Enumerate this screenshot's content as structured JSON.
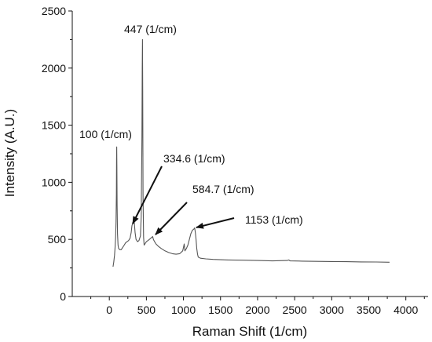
{
  "chart_data": {
    "type": "line",
    "title": "",
    "xlabel": "Raman Shift (1/cm)",
    "ylabel": "Intensity (A.U.)",
    "xlim": [
      -500,
      4300
    ],
    "ylim": [
      0,
      2500
    ],
    "xticks": [
      0,
      500,
      1000,
      1500,
      2000,
      2500,
      3000,
      3500,
      4000
    ],
    "yticks": [
      0,
      500,
      1000,
      1500,
      2000,
      2500
    ],
    "grid": false,
    "legend": "none",
    "line_color": "#555555",
    "series": [
      {
        "x": [
          50,
          60,
          70,
          78,
          85,
          90,
          95,
          98,
          100,
          102,
          105,
          110,
          118,
          125,
          140,
          160,
          180,
          200,
          220,
          240,
          260,
          280,
          295,
          305,
          315,
          322,
          328,
          334.6,
          340,
          348,
          360,
          380,
          400,
          420,
          430,
          440,
          444,
          447,
          450,
          455,
          462,
          470,
          480,
          490,
          500,
          520,
          540,
          560,
          575,
          584.7,
          595,
          610,
          630,
          660,
          700,
          750,
          800,
          850,
          900,
          950,
          990,
          1000,
          1010,
          1020,
          1040,
          1060,
          1080,
          1100,
          1120,
          1140,
          1150,
          1153,
          1160,
          1170,
          1180,
          1190,
          1200,
          1230,
          1300,
          1400,
          1600,
          1800,
          2000,
          2200,
          2400,
          2420,
          2440,
          2600,
          2800,
          3000,
          3200,
          3400,
          3600,
          3780
        ],
        "y": [
          260,
          300,
          360,
          430,
          520,
          650,
          900,
          1200,
          1310,
          1150,
          800,
          550,
          450,
          420,
          410,
          410,
          430,
          450,
          470,
          480,
          490,
          510,
          560,
          620,
          640,
          650,
          640,
          660,
          620,
          560,
          500,
          480,
          490,
          530,
          700,
          1400,
          2000,
          2250,
          1800,
          900,
          520,
          450,
          460,
          470,
          480,
          490,
          500,
          510,
          520,
          525,
          500,
          480,
          460,
          440,
          420,
          400,
          385,
          375,
          370,
          375,
          400,
          430,
          460,
          400,
          420,
          450,
          500,
          550,
          580,
          590,
          600,
          595,
          560,
          500,
          420,
          370,
          345,
          335,
          330,
          325,
          320,
          318,
          315,
          312,
          315,
          320,
          312,
          310,
          308,
          306,
          305,
          303,
          302,
          300
        ]
      }
    ],
    "annotations": [
      {
        "label": "447 (1/cm)",
        "x": 447,
        "y": 2250
      },
      {
        "label": "100 (1/cm)",
        "x": 100,
        "y": 1310
      },
      {
        "label": "334.6 (1/cm)",
        "x": 334.6,
        "y": 660
      },
      {
        "label": "584.7 (1/cm)",
        "x": 584.7,
        "y": 525
      },
      {
        "label": "1153 (1/cm)",
        "x": 1153,
        "y": 600
      }
    ]
  }
}
